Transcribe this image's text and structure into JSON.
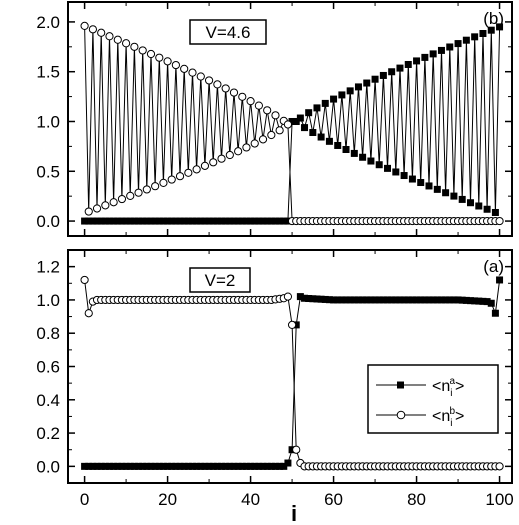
{
  "figure": {
    "x_axis_label": "i",
    "x_tick_labels": [
      "0",
      "20",
      "40",
      "60",
      "80",
      "100"
    ]
  },
  "chart_data": [
    {
      "type": "line",
      "panel_tag": "(b)",
      "annotation": "V=4.6",
      "xlim": [
        -4,
        103
      ],
      "ylim": [
        -0.15,
        2.2
      ],
      "y_ticks": [
        0.0,
        0.5,
        1.0,
        1.5,
        2.0
      ],
      "y_tick_labels": [
        "0.0",
        "0.5",
        "1.0",
        "1.5",
        "2.0"
      ],
      "grid": false,
      "series": [
        {
          "marker": "filled-square",
          "segments": [
            {
              "i_from": 0,
              "i_to": 49,
              "value": 0.0
            },
            {
              "i": 50,
              "value": 1.0
            },
            {
              "i_from": 51,
              "i_to": 100,
              "even_i_rise_to": 1.95,
              "odd_i_fall_to": 0.07
            }
          ]
        },
        {
          "marker": "open-circle",
          "segments": [
            {
              "i_from": 0,
              "i_to": 49,
              "even_i_fall_from": 1.96,
              "odd_i_rise_from": 0.08,
              "meet_at": 0.97
            },
            {
              "i": 50,
              "value": 0.0
            },
            {
              "i_from": 51,
              "i_to": 100,
              "value": 0.0
            }
          ]
        }
      ]
    },
    {
      "type": "line",
      "panel_tag": "(a)",
      "annotation": "V=2",
      "xlim": [
        -4,
        103
      ],
      "ylim": [
        -0.1,
        1.3
      ],
      "y_ticks": [
        0.0,
        0.2,
        0.4,
        0.6,
        0.8,
        1.0,
        1.2
      ],
      "y_tick_labels": [
        "0.0",
        "0.2",
        "0.4",
        "0.6",
        "0.8",
        "1.0",
        "1.2"
      ],
      "grid": false,
      "legend_position": "right",
      "legend": [
        "<n_i^a>",
        "<n_i^b>"
      ],
      "series": [
        {
          "marker": "filled-square",
          "points": [
            [
              0,
              0.0
            ],
            [
              48,
              0.0
            ],
            [
              49,
              0.02
            ],
            [
              50,
              0.1
            ],
            [
              51,
              0.85
            ],
            [
              52,
              1.02
            ],
            [
              53,
              1.01
            ],
            [
              60,
              1.0
            ],
            [
              90,
              1.0
            ],
            [
              97,
              0.99
            ],
            [
              98,
              0.98
            ],
            [
              99,
              0.92
            ],
            [
              100,
              1.12
            ]
          ]
        },
        {
          "marker": "open-circle",
          "points": [
            [
              0,
              1.12
            ],
            [
              1,
              0.92
            ],
            [
              2,
              0.99
            ],
            [
              3,
              1.0
            ],
            [
              45,
              1.0
            ],
            [
              48,
              1.01
            ],
            [
              49,
              1.02
            ],
            [
              50,
              0.85
            ],
            [
              51,
              0.1
            ],
            [
              52,
              0.02
            ],
            [
              53,
              0.0
            ],
            [
              100,
              0.0
            ]
          ]
        }
      ]
    }
  ]
}
